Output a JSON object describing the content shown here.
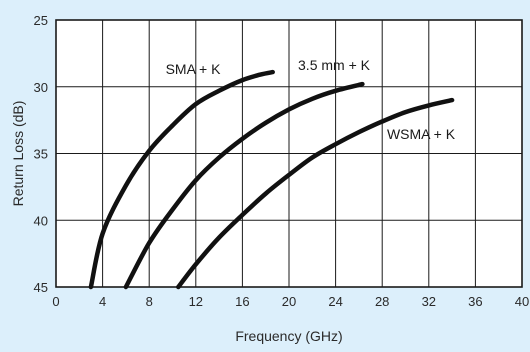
{
  "chart_data": {
    "type": "line",
    "xlabel": "Frequency (GHz)",
    "ylabel": "Return Loss (dB)",
    "xlim": [
      0,
      40
    ],
    "ylim": [
      25,
      45
    ],
    "y_inverted": true,
    "x_ticks": [
      "0",
      "4",
      "8",
      "12",
      "16",
      "20",
      "24",
      "28",
      "32",
      "36",
      "40"
    ],
    "y_ticks": [
      "25",
      "30",
      "35",
      "40",
      "45"
    ],
    "grid": true,
    "background_color": "#dceffb",
    "line_color": "#111111",
    "series": [
      {
        "name": "SMA + K",
        "x": [
          3.0,
          4.0,
          6.0,
          8.0,
          10.0,
          12.0,
          14.0,
          16.0,
          17.5,
          18.6
        ],
        "y": [
          45.0,
          41.0,
          37.4,
          34.8,
          32.9,
          31.3,
          30.3,
          29.5,
          29.1,
          28.9
        ]
      },
      {
        "name": "3.5 mm + K",
        "x": [
          6.0,
          8.0,
          10.0,
          12.0,
          14.0,
          16.0,
          18.0,
          20.0,
          22.0,
          24.0,
          26.3
        ],
        "y": [
          45.0,
          41.7,
          39.2,
          37.0,
          35.3,
          33.9,
          32.7,
          31.7,
          30.9,
          30.3,
          29.8
        ]
      },
      {
        "name": "WSMA + K",
        "x": [
          10.5,
          12.0,
          14.0,
          16.0,
          18.0,
          20.0,
          22.0,
          24.0,
          26.0,
          28.0,
          30.0,
          32.0,
          34.0
        ],
        "y": [
          45.0,
          43.3,
          41.3,
          39.6,
          38.0,
          36.6,
          35.3,
          34.3,
          33.4,
          32.6,
          31.9,
          31.4,
          31.0
        ]
      }
    ]
  }
}
